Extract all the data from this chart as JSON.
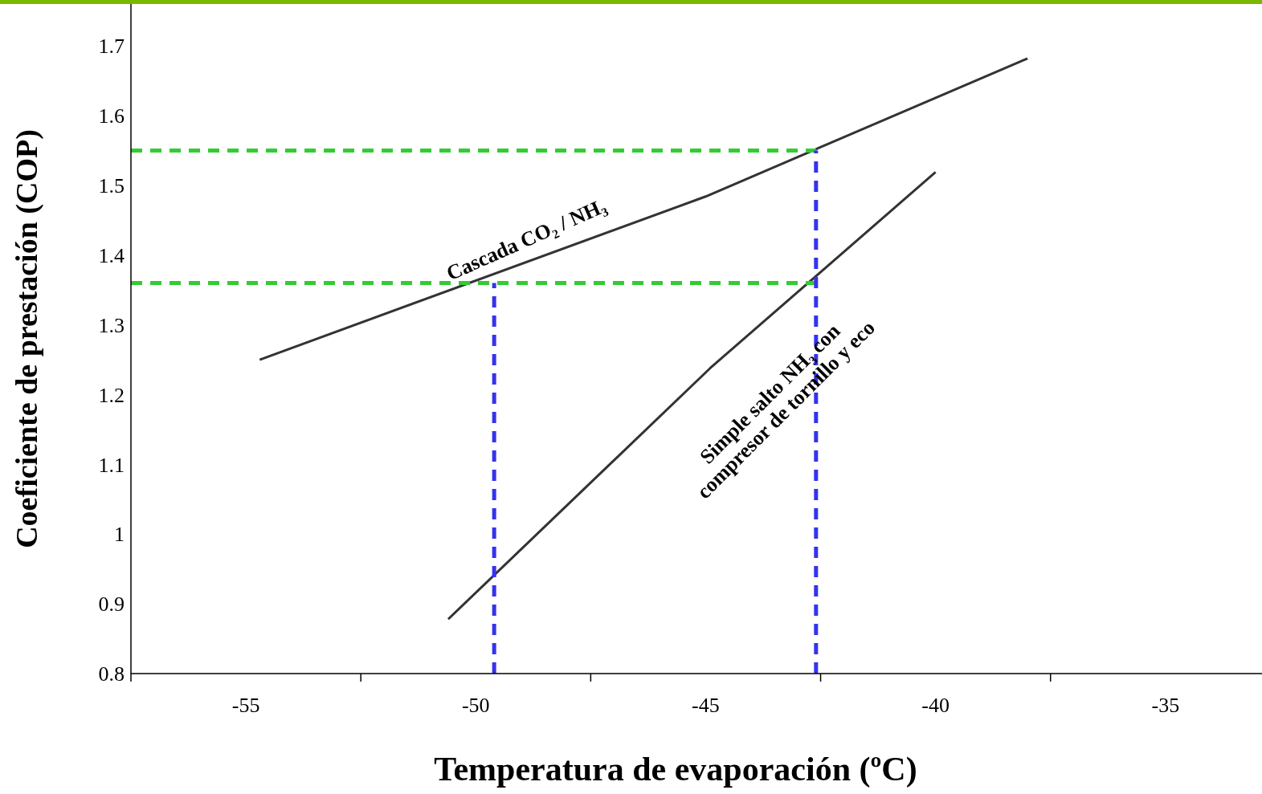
{
  "chart_data": {
    "type": "line",
    "xlabel": "Temperatura de evaporación (ºC)",
    "ylabel": "Coeficiente de prestación (COP)",
    "xlim": [
      -57.5,
      -32.9
    ],
    "ylim": [
      0.8,
      1.76
    ],
    "xticks": [
      {
        "value": -57.5,
        "label": null
      },
      -55,
      {
        "value": -52.5,
        "label": null
      },
      -50,
      {
        "value": -47.5,
        "label": null
      },
      -45,
      {
        "value": -42.5,
        "label": null
      },
      -40,
      {
        "value": -37.5,
        "label": null
      },
      -35
    ],
    "yticks": [
      0.8,
      0.9,
      1,
      1.1,
      1.2,
      1.3,
      1.4,
      1.5,
      1.6,
      1.7
    ],
    "marker": "none",
    "series": [
      {
        "color": "#333333",
        "x": [
          -54.7,
          -45,
          -38
        ],
        "values": [
          1.25,
          1.484,
          1.682
        ],
        "line_style": "solid"
      },
      {
        "color": "#333333",
        "x": [
          -50.6,
          -44.9,
          -40
        ],
        "values": [
          0.878,
          1.238,
          1.519
        ],
        "line_style": "solid"
      },
      {
        "color": "#33cc33",
        "x": [
          -57.5,
          -42.6
        ],
        "values": [
          1.55,
          1.55
        ],
        "line_style": "dashed"
      },
      {
        "color": "#33cc33",
        "x": [
          -57.5,
          -42.6
        ],
        "values": [
          1.36,
          1.36
        ],
        "line_style": "dashed"
      },
      {
        "color": "#3333ee",
        "x": [
          -49.6,
          -49.6
        ],
        "values": [
          0.8,
          1.36
        ],
        "line_style": "dashed"
      },
      {
        "color": "#3333ee",
        "x": [
          -42.6,
          -42.6
        ],
        "values": [
          0.8,
          1.55
        ],
        "line_style": "dashed"
      }
    ],
    "annotations": [
      "Cascada CO₂ / NH₃",
      "Simple salto NH₃ con\ncompresor de tornillo y eco"
    ]
  }
}
